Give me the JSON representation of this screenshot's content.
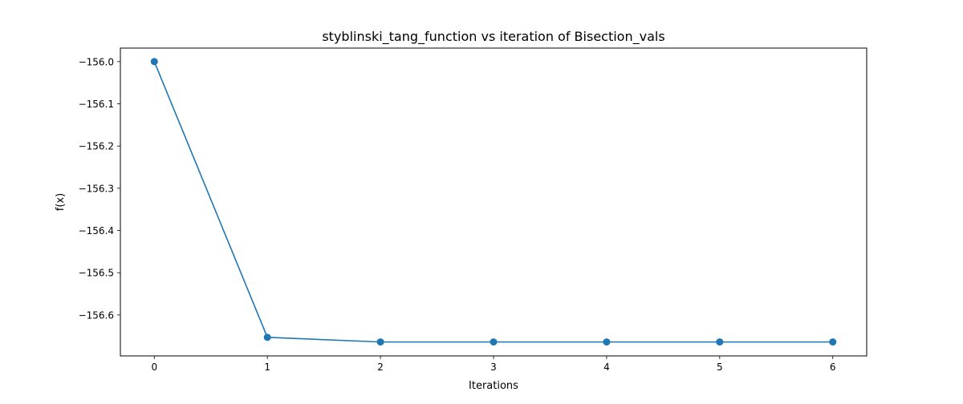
{
  "chart_data": {
    "type": "line",
    "title": "styblinski_tang_function vs iteration of Bisection_vals",
    "xlabel": "Iterations",
    "ylabel": "f(x)",
    "x": [
      0,
      1,
      2,
      3,
      4,
      5,
      6
    ],
    "series": [
      {
        "values": [
          -156.0,
          -156.653,
          -156.664,
          -156.664,
          -156.664,
          -156.664,
          -156.664
        ],
        "color": "#1f77b4",
        "marker": "circle"
      }
    ],
    "xlim": [
      -0.3,
      6.3
    ],
    "ylim": [
      -156.697,
      -155.968
    ],
    "xticks": [
      {
        "value": 0,
        "label": "0"
      },
      {
        "value": 1,
        "label": "1"
      },
      {
        "value": 2,
        "label": "2"
      },
      {
        "value": 3,
        "label": "3"
      },
      {
        "value": 4,
        "label": "4"
      },
      {
        "value": 5,
        "label": "5"
      },
      {
        "value": 6,
        "label": "6"
      }
    ],
    "yticks": [
      {
        "value": -156.0,
        "label": "−156.0"
      },
      {
        "value": -156.1,
        "label": "−156.1"
      },
      {
        "value": -156.2,
        "label": "−156.2"
      },
      {
        "value": -156.3,
        "label": "−156.3"
      },
      {
        "value": -156.4,
        "label": "−156.4"
      },
      {
        "value": -156.5,
        "label": "−156.5"
      },
      {
        "value": -156.6,
        "label": "−156.6"
      }
    ],
    "grid": false,
    "legend": "none"
  }
}
